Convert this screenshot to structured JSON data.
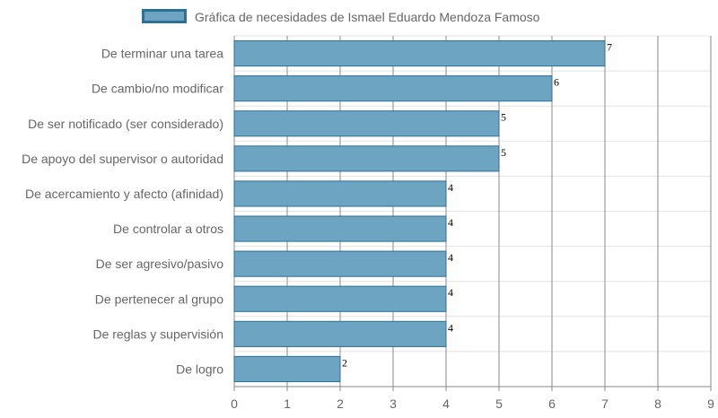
{
  "chart_data": {
    "type": "bar",
    "orientation": "horizontal",
    "legend": {
      "label": "Gráfica de necesidades de Ismael Eduardo Mendoza Famoso",
      "position": "top"
    },
    "categories": [
      "De terminar una tarea",
      "De cambio/no modificar",
      "De ser notificado (ser considerado)",
      "De apoyo del supervisor o autoridad",
      "De acercamiento y afecto (afinidad)",
      "De controlar a otros",
      "De ser agresivo/pasivo",
      "De pertenecer al grupo",
      "De reglas y supervisión",
      "De logro"
    ],
    "values": [
      7,
      6,
      5,
      5,
      4,
      4,
      4,
      4,
      4,
      2
    ],
    "xlim": [
      0,
      9
    ],
    "xticks": [
      "0",
      "1",
      "2",
      "3",
      "4",
      "5",
      "6",
      "7",
      "8",
      "9"
    ],
    "grid": true,
    "data_labels": true
  },
  "colors": {
    "bar_fill": "#6ca4c2",
    "bar_border": "#2e6f96",
    "grid_major": "#8a8a8a",
    "grid_minor": "#e2e2e2",
    "text": "#666666",
    "value_text": "#000000"
  }
}
